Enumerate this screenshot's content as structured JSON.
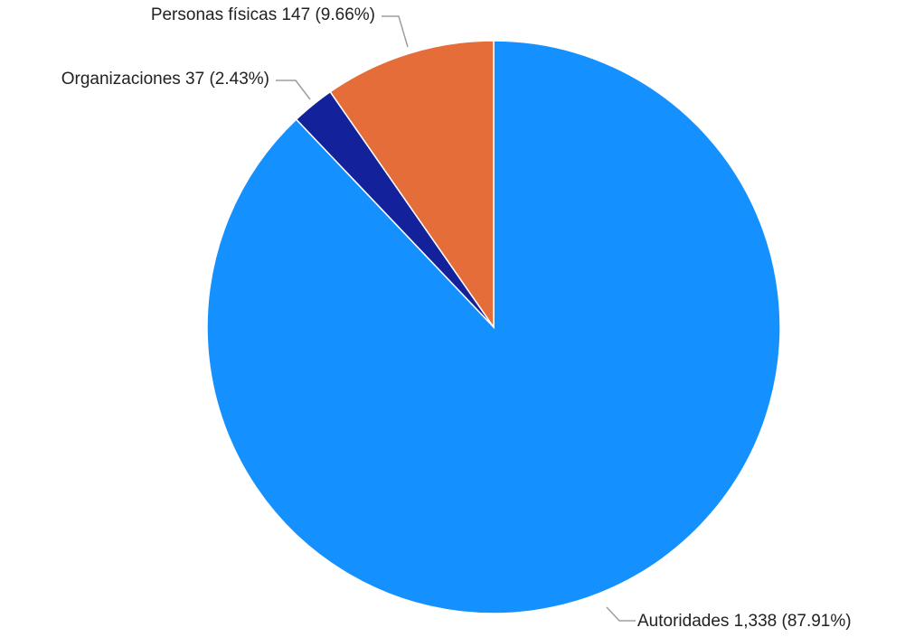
{
  "chart_data": {
    "type": "pie",
    "title": "",
    "slices": [
      {
        "category": "Autoridades",
        "value": 1338,
        "value_label": "1,338",
        "percent": 87.91,
        "percent_label": "(87.91%)",
        "label": "Autoridades 1,338 (87.91%)",
        "color": "#1590ff"
      },
      {
        "category": "Organizaciones",
        "value": 37,
        "value_label": "37",
        "percent": 2.43,
        "percent_label": "(2.43%)",
        "label": "Organizaciones 37 (2.43%)",
        "color": "#13229b"
      },
      {
        "category": "Personas físicas",
        "value": 147,
        "value_label": "147",
        "percent": 9.66,
        "percent_label": "(9.66%)",
        "label": "Personas físicas 147 (9.66%)",
        "color": "#e56d39"
      }
    ],
    "start_angle": "12 o'clock",
    "direction": "clockwise",
    "legend": "none",
    "labels": "outside with leader lines"
  }
}
